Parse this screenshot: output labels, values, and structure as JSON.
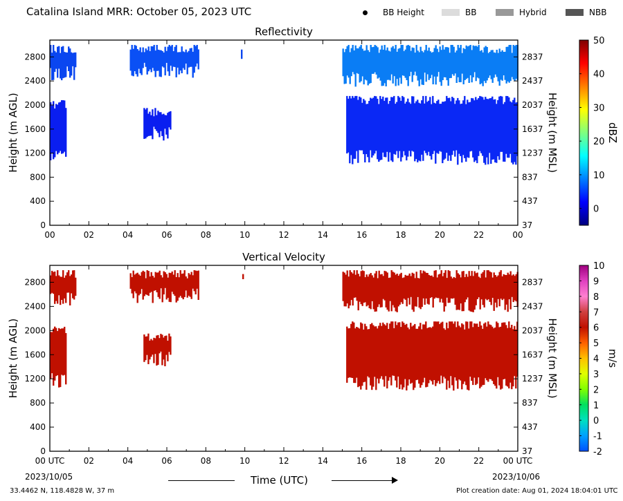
{
  "header": {
    "title": "Catalina Island MRR:  October 05, 2023 UTC",
    "legend": [
      {
        "label": "BB Height",
        "kind": "dot",
        "color": "#000000"
      },
      {
        "label": "BB",
        "kind": "swatch",
        "color": "#dcdcdc"
      },
      {
        "label": "Hybrid",
        "kind": "swatch",
        "color": "#999999"
      },
      {
        "label": "NBB",
        "kind": "swatch",
        "color": "#555555"
      }
    ]
  },
  "chart_data": [
    {
      "type": "heatmap",
      "title": "Reflectivity",
      "ylabel": "Height (m AGL)",
      "y2label": "Height (m MSL)",
      "x_ticks": [
        "00",
        "02",
        "04",
        "06",
        "08",
        "10",
        "12",
        "14",
        "16",
        "18",
        "20",
        "22",
        "00"
      ],
      "xlim": [
        0,
        24
      ],
      "ylim": [
        0,
        3080
      ],
      "y_ticks": [
        0,
        400,
        800,
        1200,
        1600,
        2000,
        2400,
        2800
      ],
      "y2_ticks": [
        37,
        437,
        837,
        1237,
        1637,
        2037,
        2437,
        2837
      ],
      "colorbar": {
        "label": "dBZ",
        "min": -5,
        "max": 50,
        "ticks": [
          0,
          10,
          20,
          30,
          40,
          50
        ],
        "colors": [
          "#00007f",
          "#0000ff",
          "#007fff",
          "#00ffff",
          "#7fff7f",
          "#ffff00",
          "#ff7f00",
          "#ff0000",
          "#7f0000"
        ]
      },
      "echo_regions": [
        {
          "t0": 0.0,
          "t1": 1.3,
          "h0": 2450,
          "h1": 3000,
          "color": "#0a46f0"
        },
        {
          "t0": 0.0,
          "t1": 0.8,
          "h0": 1100,
          "h1": 2080,
          "color": "#0a1ef0"
        },
        {
          "t0": 4.1,
          "t1": 7.6,
          "h0": 2500,
          "h1": 3000,
          "color": "#0a50f5"
        },
        {
          "t0": 4.8,
          "t1": 6.2,
          "h0": 1450,
          "h1": 1950,
          "color": "#0a1ef0"
        },
        {
          "t0": 9.8,
          "t1": 9.9,
          "h0": 2750,
          "h1": 2950,
          "color": "#0a46f0"
        },
        {
          "t0": 15.0,
          "t1": 24.0,
          "h0": 2350,
          "h1": 3000,
          "color": "#0a7df5"
        },
        {
          "t0": 15.2,
          "t1": 24.0,
          "h0": 1050,
          "h1": 2150,
          "color": "#0a28f5"
        }
      ]
    },
    {
      "type": "heatmap",
      "title": "Vertical Velocity",
      "ylabel": "Height (m AGL)",
      "y2label": "Height (m MSL)",
      "x_ticks": [
        "00 UTC",
        "02",
        "04",
        "06",
        "08",
        "10",
        "12",
        "14",
        "16",
        "18",
        "20",
        "22",
        "00 UTC"
      ],
      "xlim": [
        0,
        24
      ],
      "ylim": [
        0,
        3080
      ],
      "y_ticks": [
        0,
        400,
        800,
        1200,
        1600,
        2000,
        2400,
        2800
      ],
      "y2_ticks": [
        37,
        437,
        837,
        1237,
        1637,
        2037,
        2437,
        2837
      ],
      "colorbar": {
        "label": "m/s",
        "min": -2,
        "max": 10,
        "ticks": [
          -2,
          -1,
          0,
          1,
          2,
          3,
          4,
          5,
          6,
          7,
          8,
          9,
          10
        ],
        "colors": [
          "#0050ff",
          "#00a0ff",
          "#00e0c0",
          "#00e060",
          "#80ff00",
          "#e0ff00",
          "#ffc000",
          "#ff6000",
          "#c01000",
          "#d04040",
          "#ff80d0",
          "#e040c0",
          "#a00080"
        ]
      },
      "echo_regions": [
        {
          "t0": 0.0,
          "t1": 1.3,
          "h0": 2450,
          "h1": 3000,
          "color": "#c01000"
        },
        {
          "t0": 0.0,
          "t1": 0.8,
          "h0": 1100,
          "h1": 2080,
          "color": "#c01000"
        },
        {
          "t0": 4.1,
          "t1": 7.6,
          "h0": 2500,
          "h1": 3000,
          "color": "#c01000"
        },
        {
          "t0": 4.8,
          "t1": 6.2,
          "h0": 1450,
          "h1": 1950,
          "color": "#c01000"
        },
        {
          "t0": 9.8,
          "t1": 9.9,
          "h0": 2750,
          "h1": 2950,
          "color": "#c01000"
        },
        {
          "t0": 15.0,
          "t1": 24.0,
          "h0": 2350,
          "h1": 3000,
          "color": "#c01000"
        },
        {
          "t0": 15.2,
          "t1": 24.0,
          "h0": 1050,
          "h1": 2150,
          "color": "#c01000"
        }
      ]
    }
  ],
  "footer": {
    "date_start": "2023/10/05",
    "date_end": "2023/10/06",
    "xlabel": "Time (UTC)",
    "location": "33.4462 N, 118.4828 W, 37 m",
    "creation": "Plot creation date: Aug 01, 2024 18:04:01 UTC"
  }
}
